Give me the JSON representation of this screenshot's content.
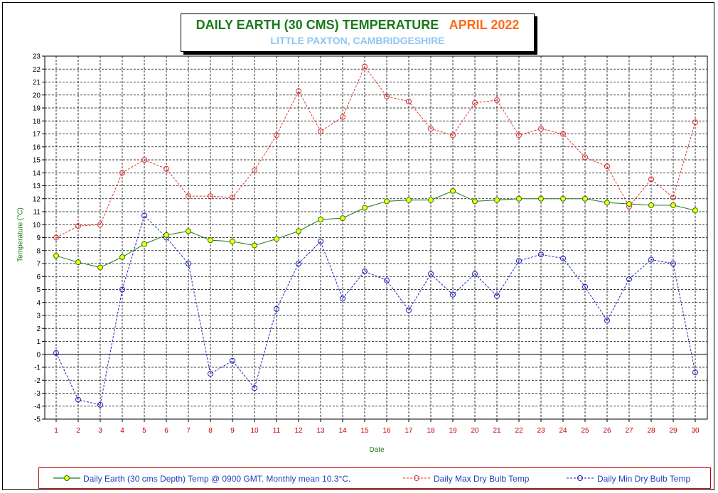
{
  "title": {
    "main": "DAILY EARTH (30 CMS) TEMPERATURE",
    "month": "APRIL 2022",
    "subtitle": "LITTLE PAXTON, CAMBRIDGESHIRE"
  },
  "colors": {
    "title": "#1a7a1a",
    "month": "#ff6a13",
    "subtitle": "#8ec5f4",
    "earth": "#1a7a1a",
    "earth_marker": "#ffff00",
    "max": "#e03030",
    "min": "#2020c0",
    "legend_border": "#c00000",
    "legend_text": "#1f3fbf"
  },
  "chart_data": {
    "type": "line",
    "xlabel": "Date",
    "ylabel": "Temperature (°C)",
    "x": [
      1,
      2,
      3,
      4,
      5,
      6,
      7,
      8,
      9,
      10,
      11,
      12,
      13,
      14,
      15,
      16,
      17,
      18,
      19,
      20,
      21,
      22,
      23,
      24,
      25,
      26,
      27,
      28,
      29,
      30
    ],
    "xlim": [
      1,
      30
    ],
    "ylim": [
      -5,
      23
    ],
    "y_ticks": [
      -5,
      -4,
      -3,
      -2,
      -1,
      0,
      1,
      2,
      3,
      4,
      5,
      6,
      7,
      8,
      9,
      10,
      11,
      12,
      13,
      14,
      15,
      16,
      17,
      18,
      19,
      20,
      21,
      22,
      23
    ],
    "grid": true,
    "legend_position": "bottom",
    "series": [
      {
        "name": "Daily Earth (30 cms Depth) Temp @ 0900 GMT. Monthly mean 10.3°C.",
        "style": "solid",
        "marker": "filled-circle",
        "values": [
          7.6,
          7.1,
          6.7,
          7.5,
          8.5,
          9.2,
          9.5,
          8.8,
          8.7,
          8.4,
          8.9,
          9.5,
          10.4,
          10.5,
          11.3,
          11.8,
          11.9,
          11.9,
          12.6,
          11.8,
          11.9,
          12.0,
          12.0,
          12.0,
          12.0,
          11.7,
          11.6,
          11.5,
          11.5,
          11.1
        ]
      },
      {
        "name": "Daily Max Dry Bulb Temp",
        "style": "dashed",
        "marker": "open-circle",
        "values": [
          9.0,
          9.9,
          10.0,
          14.0,
          15.0,
          14.3,
          12.2,
          12.2,
          12.1,
          14.2,
          16.9,
          20.3,
          17.2,
          18.3,
          22.2,
          19.9,
          19.5,
          17.4,
          16.9,
          19.4,
          19.6,
          16.9,
          17.4,
          17.0,
          15.2,
          14.5,
          11.4,
          13.5,
          12.1,
          17.9
        ]
      },
      {
        "name": "Daily Min Dry Bulb Temp",
        "style": "dashed",
        "marker": "open-circle",
        "values": [
          0.1,
          -3.5,
          -3.9,
          5.0,
          10.7,
          9.0,
          7.0,
          -1.5,
          -0.5,
          -2.6,
          3.5,
          7.0,
          8.7,
          4.3,
          6.4,
          5.7,
          3.4,
          6.2,
          4.6,
          6.2,
          4.5,
          7.2,
          7.7,
          7.4,
          5.2,
          2.6,
          5.8,
          7.3,
          7.0,
          -1.4
        ]
      }
    ]
  }
}
